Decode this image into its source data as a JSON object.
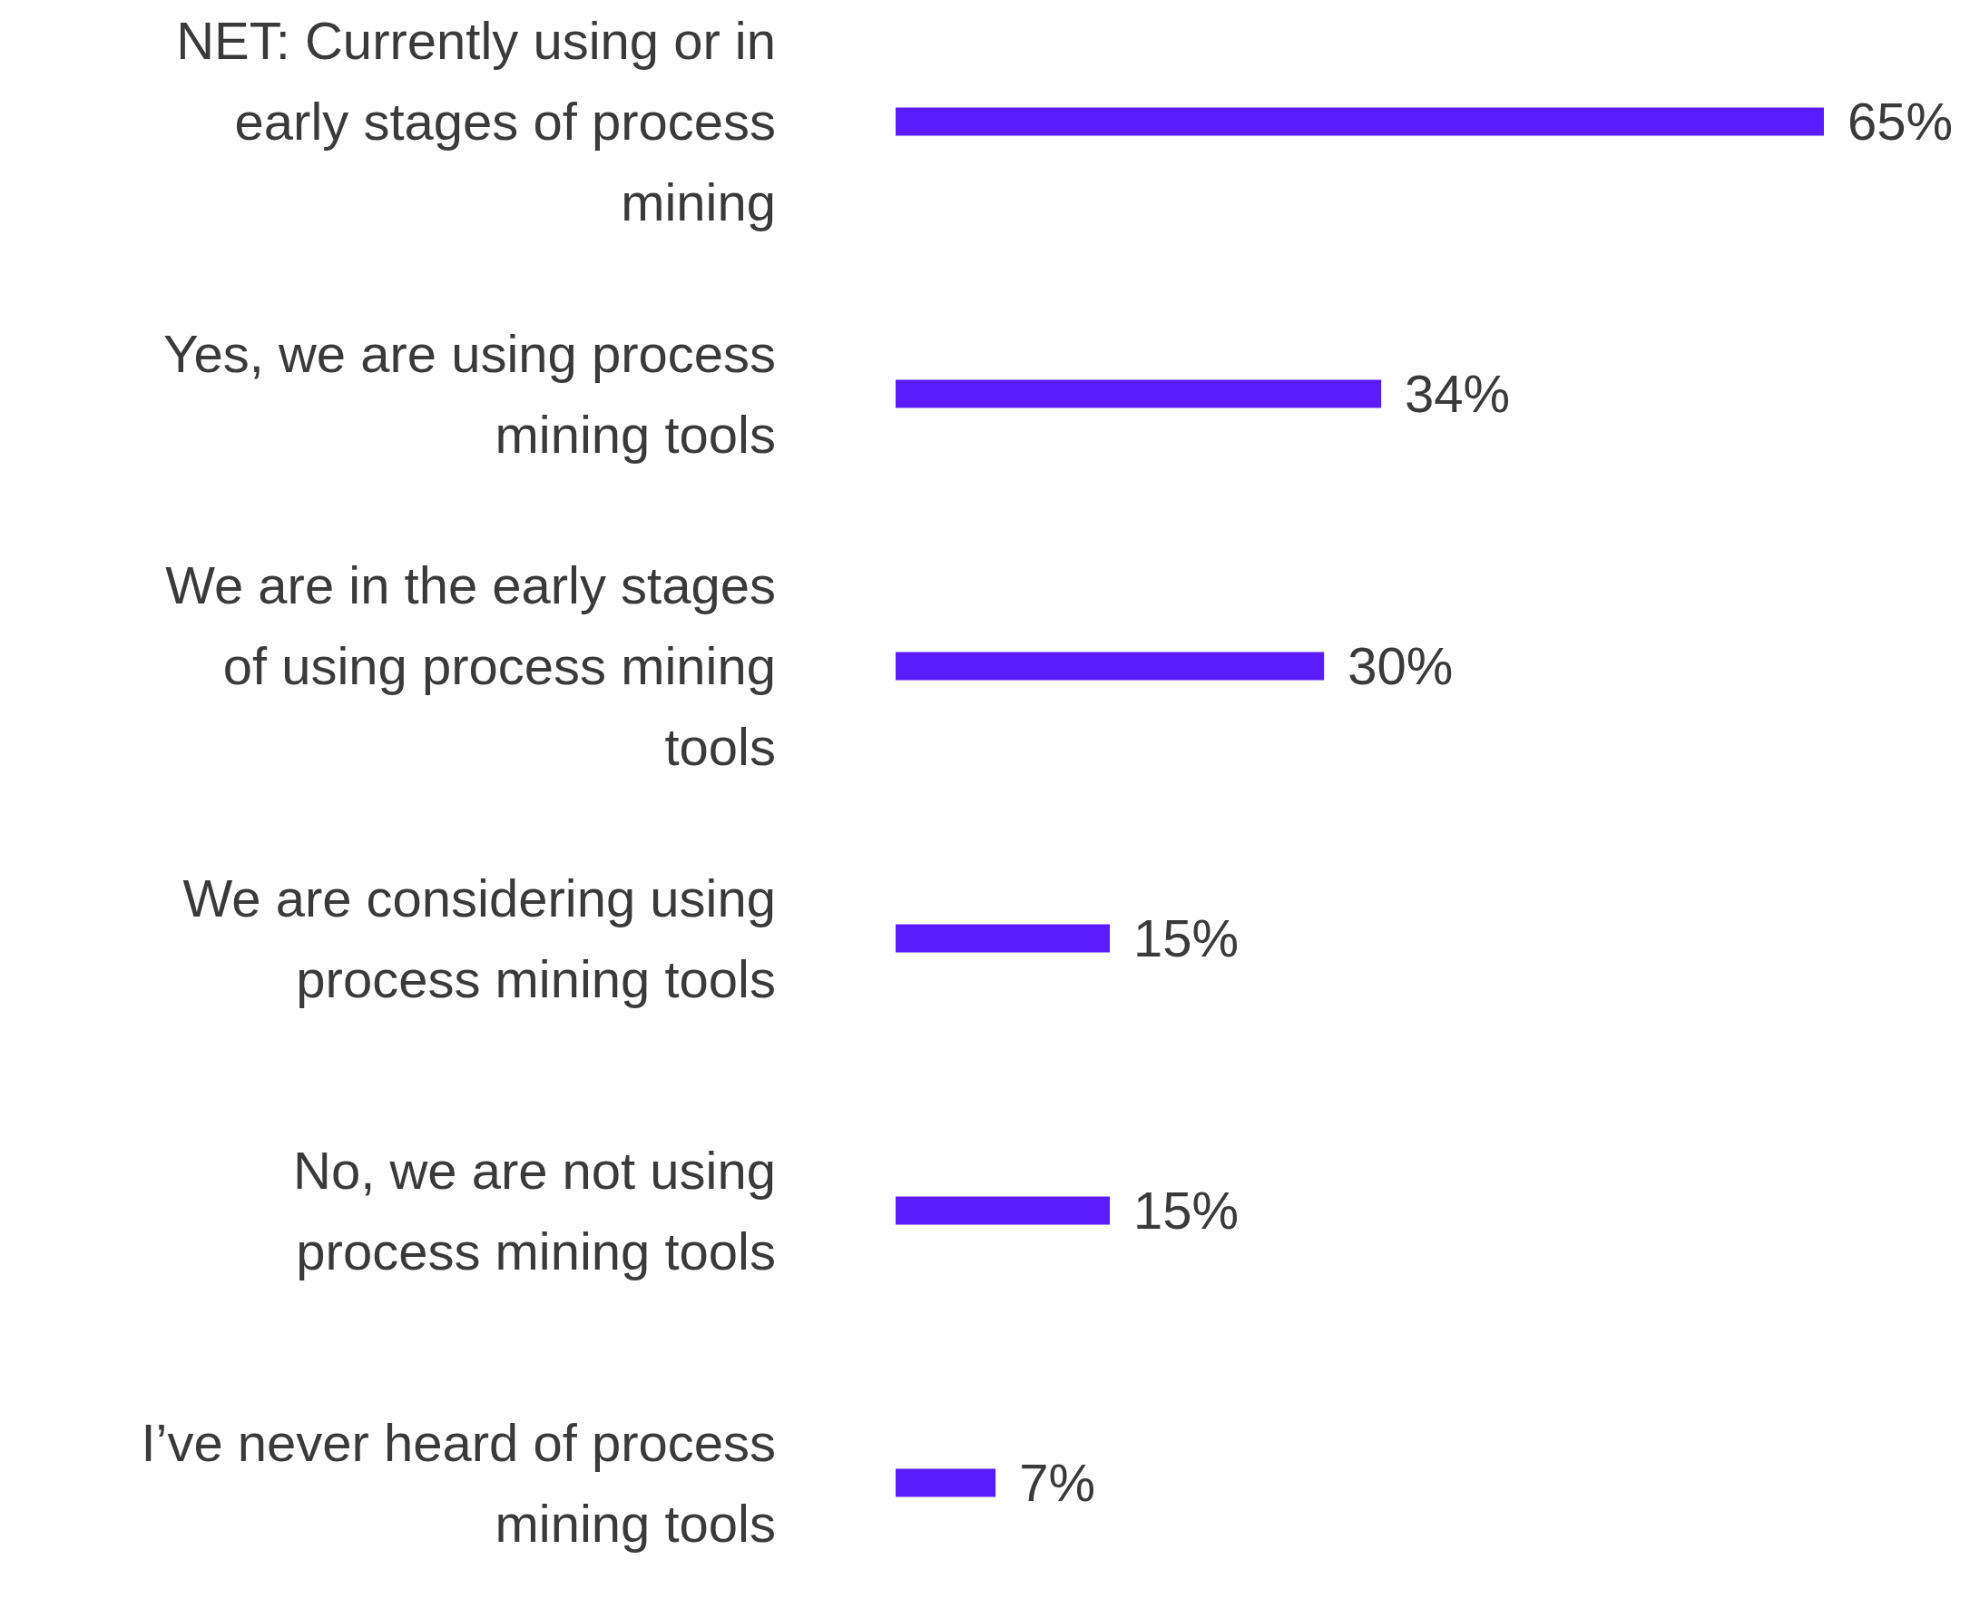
{
  "chart_data": {
    "type": "bar",
    "orientation": "horizontal",
    "categories": [
      "NET: Currently using or in early stages of process mining",
      "Yes, we are using process mining tools",
      "We are in the early stages of using process mining tools",
      "We are considering using process mining tools",
      "No, we are not using process mining tools",
      "I’ve never heard of process mining tools"
    ],
    "values": [
      65,
      34,
      30,
      15,
      15,
      7
    ],
    "value_labels": [
      "65%",
      "34%",
      "30%",
      "15%",
      "15%",
      "7%"
    ],
    "color": "#5b1bff"
  }
}
